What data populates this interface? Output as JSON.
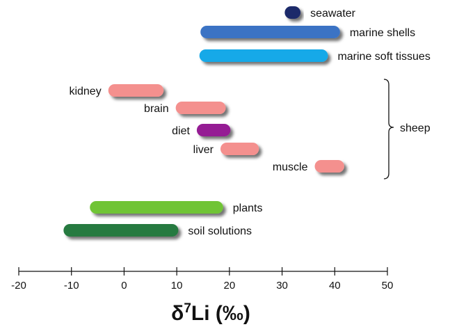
{
  "chart_data": {
    "type": "range-bar",
    "xlabel": "δ⁷Li (‰)",
    "xlim": [
      -20,
      50
    ],
    "x_ticks": [
      -20,
      -10,
      0,
      10,
      20,
      30,
      40,
      50
    ],
    "x_tick_labels": [
      "-20",
      "-10",
      "0",
      "10",
      "20",
      "30",
      "40",
      "50"
    ],
    "grid": false,
    "ranges": [
      {
        "label": "seawater",
        "min": 30.5,
        "max": 33.5,
        "color": "#1f2a6b"
      },
      {
        "label": "marine shells",
        "min": 14.5,
        "max": 41,
        "color": "#3b73c4"
      },
      {
        "label": "marine soft tissues",
        "min": 14.3,
        "max": 38.7,
        "color": "#14a9e8"
      },
      {
        "label": "kidney",
        "min": -3,
        "max": 7.5,
        "color": "#f4908e"
      },
      {
        "label": "brain",
        "min": 9.8,
        "max": 19.3,
        "color": "#f4908e"
      },
      {
        "label": "diet",
        "min": 13.8,
        "max": 20.2,
        "color": "#951b94"
      },
      {
        "label": "liver",
        "min": 18.3,
        "max": 25.6,
        "color": "#f4908e"
      },
      {
        "label": "muscle",
        "min": 36.2,
        "max": 41.8,
        "color": "#f4908e"
      },
      {
        "label": "plants",
        "min": -6.5,
        "max": 18.8,
        "color": "#6fc434"
      },
      {
        "label": "soil solutions",
        "min": -11.5,
        "max": 10.3,
        "color": "#257a41"
      }
    ],
    "group_bracket": {
      "label": "sheep",
      "members": [
        "kidney",
        "brain",
        "diet",
        "liver",
        "muscle"
      ]
    }
  }
}
